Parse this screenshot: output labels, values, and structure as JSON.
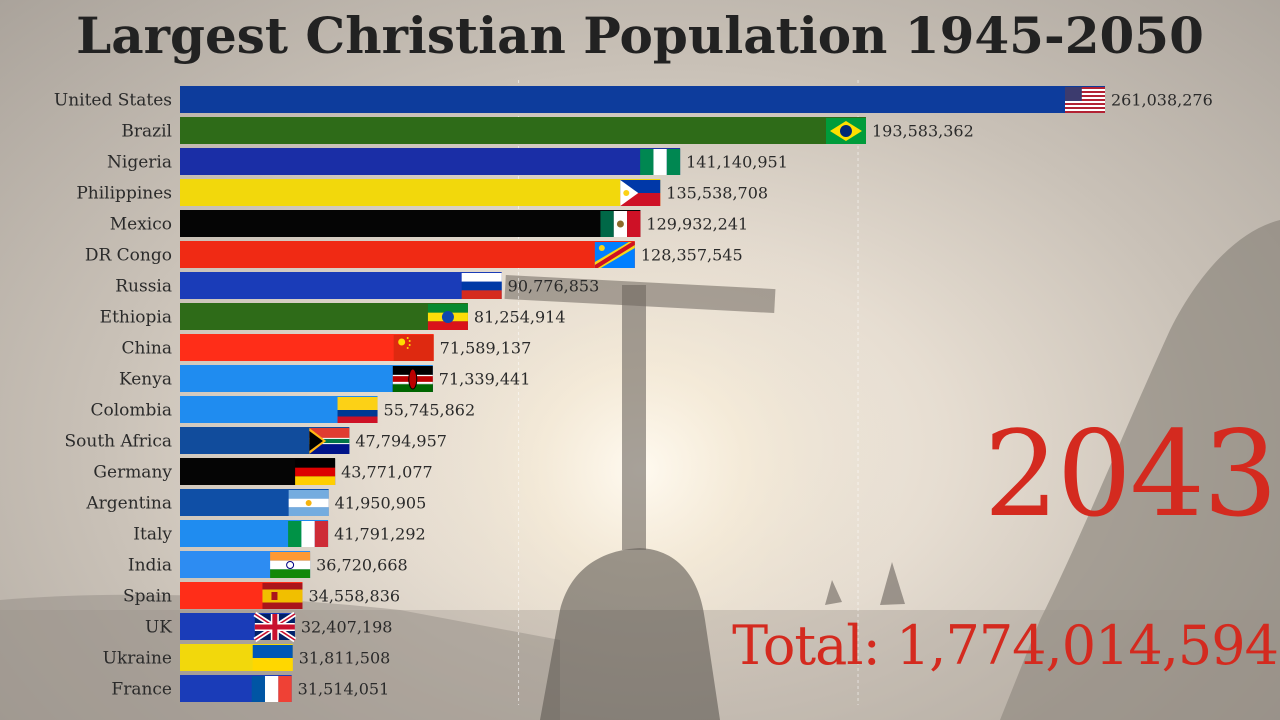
{
  "chart_data": {
    "type": "bar",
    "orientation": "horizontal",
    "title": "Largest Christian Population 1945-2050",
    "year": "2043",
    "total": "Total: 1,774,014,594",
    "grid": true,
    "xlim": [
      0,
      261038276
    ],
    "categories": [
      "United States",
      "Brazil",
      "Nigeria",
      "Philippines",
      "Mexico",
      "DR Congo",
      "Russia",
      "Ethiopia",
      "China",
      "Kenya",
      "Colombia",
      "South Africa",
      "Germany",
      "Argentina",
      "Italy",
      "India",
      "Spain",
      "UK",
      "Ukraine",
      "France"
    ],
    "values": [
      261038276,
      193583362,
      141140951,
      135538708,
      129932241,
      128357545,
      90776853,
      81254914,
      71589137,
      71339441,
      55745862,
      47794957,
      43771077,
      41950905,
      41791292,
      36720668,
      34558836,
      32407198,
      31811508,
      31514051
    ],
    "value_labels": [
      "261,038,276",
      "193,583,362",
      "141,140,951",
      "135,538,708",
      "129,932,241",
      "128,357,545",
      "90,776,853",
      "81,254,914",
      "71,589,137",
      "71,339,441",
      "55,745,862",
      "47,794,957",
      "43,771,077",
      "41,950,905",
      "41,791,292",
      "36,720,668",
      "34,558,836",
      "32,407,198",
      "31,811,508",
      "31,514,051"
    ],
    "colors": [
      "#0d3c9c",
      "#2e6b18",
      "#1a2ea6",
      "#f2d80c",
      "#050505",
      "#f02a14",
      "#1a3cb8",
      "#2e6b18",
      "#ff2d18",
      "#1f8cf0",
      "#1f8cf0",
      "#114c9c",
      "#050505",
      "#0f4fa6",
      "#1f8cf0",
      "#2d8cf2",
      "#ff2d18",
      "#1a3cb8",
      "#f2d80c",
      "#1a3cb8"
    ],
    "flags": [
      "us",
      "br",
      "ng",
      "ph",
      "mx",
      "cd",
      "ru",
      "et",
      "cn",
      "ke",
      "co",
      "za",
      "de",
      "ar",
      "it",
      "in",
      "es",
      "gb",
      "ua",
      "fr"
    ]
  }
}
